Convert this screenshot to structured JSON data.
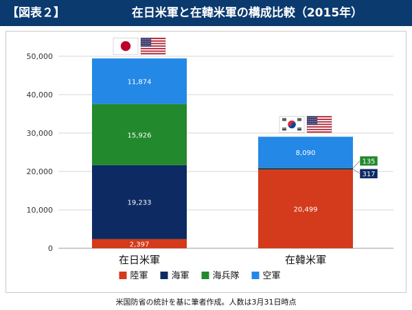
{
  "header": {
    "label": "【図表２】",
    "title": "在日米軍と在韓米軍の構成比較（2015年）"
  },
  "footer": {
    "note": "米国防省の統計を基に筆者作成。人数は3月31日時点"
  },
  "flags": {
    "bar_1": [
      "japan-flag",
      "usa-flag"
    ],
    "bar_2": [
      "south-korea-flag",
      "usa-flag"
    ]
  },
  "chart_data": {
    "type": "bar",
    "stacked": true,
    "categories": [
      "在日米軍",
      "在韓米軍"
    ],
    "series": [
      {
        "name": "陸軍",
        "color": "#d43a1c",
        "values": [
          2397,
          20499
        ]
      },
      {
        "name": "海軍",
        "color": "#0d2a63",
        "values": [
          19233,
          317
        ]
      },
      {
        "name": "海兵隊",
        "color": "#22892c",
        "values": [
          15926,
          135
        ]
      },
      {
        "name": "空軍",
        "color": "#2388e6",
        "values": [
          11874,
          8090
        ]
      }
    ],
    "value_labels": [
      [
        "2,397",
        "20,499"
      ],
      [
        "19,233",
        "317"
      ],
      [
        "15,926",
        "135"
      ],
      [
        "11,874",
        "8,090"
      ]
    ],
    "yticks": [
      0,
      10000,
      20000,
      30000,
      40000,
      50000
    ],
    "ytick_labels": [
      "0",
      "10,000",
      "20,000",
      "30,000",
      "40,000",
      "50,000"
    ],
    "ylim": [
      0,
      50000
    ],
    "grid": true,
    "legend": "bottom",
    "title": "",
    "xlabel": "",
    "ylabel": ""
  }
}
